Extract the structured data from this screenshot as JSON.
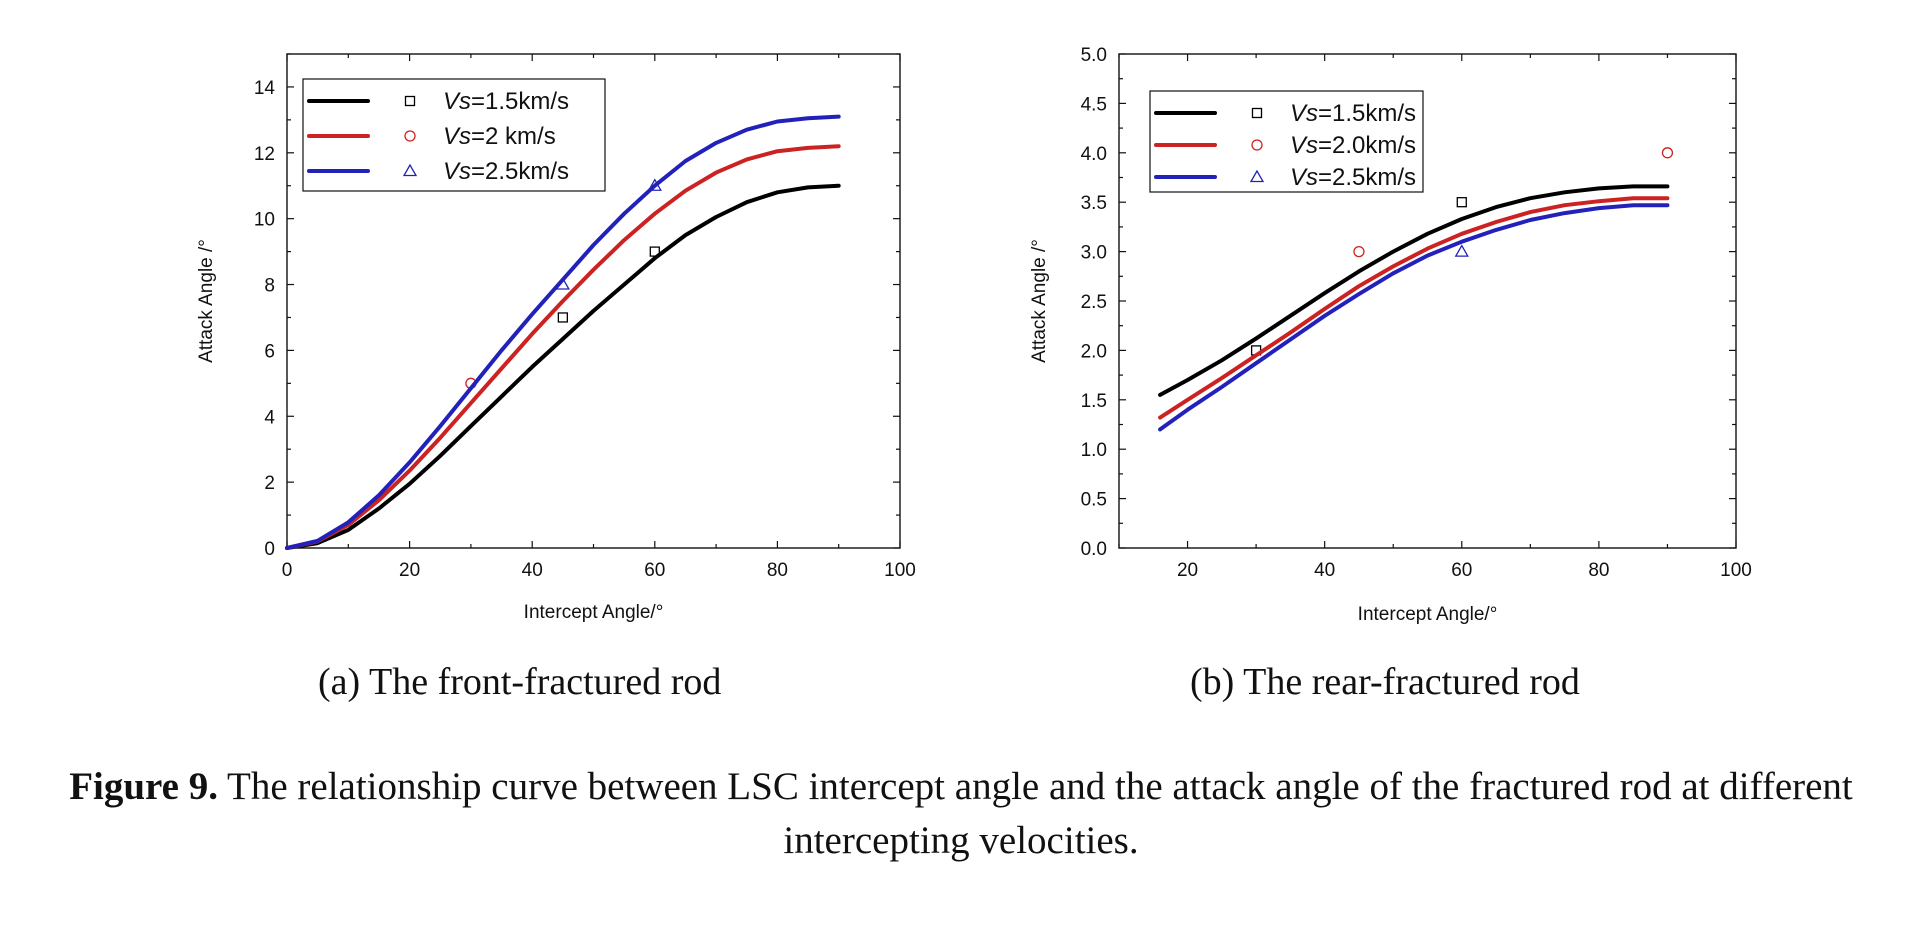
{
  "chart_data": [
    {
      "type": "line",
      "panel": "a",
      "xlabel": "Intercept Angle/°",
      "ylabel": "Attack Angle /°",
      "xlim": [
        0,
        100
      ],
      "ylim": [
        0,
        15
      ],
      "xticks": [
        0,
        20,
        40,
        60,
        80,
        100
      ],
      "yticks": [
        0,
        2,
        4,
        6,
        8,
        10,
        12,
        14
      ],
      "legend_position": "top-left",
      "series": [
        {
          "name": "Vs=1.5km/s",
          "var": "Vs",
          "rest": "=1.5km/s",
          "color": "#000000",
          "marker": "square",
          "line": {
            "x": [
              0,
              5,
              10,
              15,
              20,
              25,
              30,
              35,
              40,
              45,
              50,
              55,
              60,
              65,
              70,
              75,
              80,
              85,
              90
            ],
            "y": [
              0,
              0.15,
              0.55,
              1.2,
              1.95,
              2.8,
              3.7,
              4.6,
              5.5,
              6.35,
              7.2,
              8.0,
              8.8,
              9.5,
              10.05,
              10.5,
              10.8,
              10.95,
              11.0
            ]
          },
          "points": {
            "x": [
              45,
              60
            ],
            "y": [
              7,
              9
            ]
          }
        },
        {
          "name": "Vs=2 km/s",
          "var": "Vs",
          "rest": "=2 km/s",
          "color": "#cc2222",
          "marker": "circle",
          "line": {
            "x": [
              0,
              5,
              10,
              15,
              20,
              25,
              30,
              35,
              40,
              45,
              50,
              55,
              60,
              65,
              70,
              75,
              80,
              85,
              90
            ],
            "y": [
              0,
              0.2,
              0.7,
              1.45,
              2.35,
              3.35,
              4.4,
              5.45,
              6.5,
              7.5,
              8.45,
              9.35,
              10.15,
              10.85,
              11.4,
              11.8,
              12.05,
              12.15,
              12.2
            ]
          },
          "points": {
            "x": [
              30
            ],
            "y": [
              5
            ]
          }
        },
        {
          "name": "Vs=2.5km/s",
          "var": "Vs",
          "rest": "=2.5km/s",
          "color": "#2222bb",
          "marker": "triangle",
          "line": {
            "x": [
              0,
              5,
              10,
              15,
              20,
              25,
              30,
              35,
              40,
              45,
              50,
              55,
              60,
              65,
              70,
              75,
              80,
              85,
              90
            ],
            "y": [
              0,
              0.22,
              0.78,
              1.6,
              2.6,
              3.7,
              4.85,
              6.0,
              7.1,
              8.15,
              9.2,
              10.15,
              11.0,
              11.75,
              12.3,
              12.7,
              12.95,
              13.05,
              13.1
            ]
          },
          "points": {
            "x": [
              45,
              60
            ],
            "y": [
              8,
              11
            ]
          }
        }
      ]
    },
    {
      "type": "line",
      "panel": "b",
      "xlabel": "Intercept Angle/°",
      "ylabel": "Attack Angle /°",
      "xlim": [
        10,
        100
      ],
      "ylim": [
        0,
        5
      ],
      "xticks": [
        20,
        40,
        60,
        80,
        100
      ],
      "yticks": [
        0.0,
        0.5,
        1.0,
        1.5,
        2.0,
        2.5,
        3.0,
        3.5,
        4.0,
        4.5,
        5.0
      ],
      "legend_position": "top-left",
      "series": [
        {
          "name": "Vs=1.5km/s",
          "var": "Vs",
          "rest": "=1.5km/s",
          "color": "#000000",
          "marker": "square",
          "line": {
            "x": [
              16,
              20,
              25,
              30,
              35,
              40,
              45,
              50,
              55,
              60,
              65,
              70,
              75,
              80,
              85,
              90
            ],
            "y": [
              1.55,
              1.7,
              1.9,
              2.12,
              2.35,
              2.58,
              2.8,
              3.0,
              3.18,
              3.33,
              3.45,
              3.54,
              3.6,
              3.64,
              3.66,
              3.66
            ]
          },
          "points": {
            "x": [
              30,
              60
            ],
            "y": [
              2.0,
              3.5
            ]
          }
        },
        {
          "name": "Vs=2.0km/s",
          "var": "Vs",
          "rest": "=2.0km/s",
          "color": "#cc2222",
          "marker": "circle",
          "line": {
            "x": [
              16,
              20,
              25,
              30,
              35,
              40,
              45,
              50,
              55,
              60,
              65,
              70,
              75,
              80,
              85,
              90
            ],
            "y": [
              1.32,
              1.5,
              1.72,
              1.95,
              2.18,
              2.42,
              2.65,
              2.85,
              3.03,
              3.18,
              3.3,
              3.4,
              3.47,
              3.51,
              3.54,
              3.54
            ]
          },
          "points": {
            "x": [
              45,
              90
            ],
            "y": [
              3.0,
              4.0
            ]
          }
        },
        {
          "name": "Vs=2.5km/s",
          "var": "Vs",
          "rest": "=2.5km/s",
          "color": "#2222bb",
          "marker": "triangle",
          "line": {
            "x": [
              16,
              20,
              25,
              30,
              35,
              40,
              45,
              50,
              55,
              60,
              65,
              70,
              75,
              80,
              85,
              90
            ],
            "y": [
              1.2,
              1.4,
              1.63,
              1.87,
              2.11,
              2.35,
              2.57,
              2.78,
              2.96,
              3.1,
              3.22,
              3.32,
              3.39,
              3.44,
              3.47,
              3.47
            ]
          },
          "points": {
            "x": [
              60
            ],
            "y": [
              3.0
            ]
          }
        }
      ]
    }
  ],
  "subcaptions": {
    "a": "(a)  The front-fractured rod",
    "b": "(b)  The rear-fractured rod"
  },
  "caption": {
    "label": "Figure 9.",
    "text": " The relationship curve between LSC intercept angle and the attack angle of the fractured rod at different intercepting velocities."
  }
}
